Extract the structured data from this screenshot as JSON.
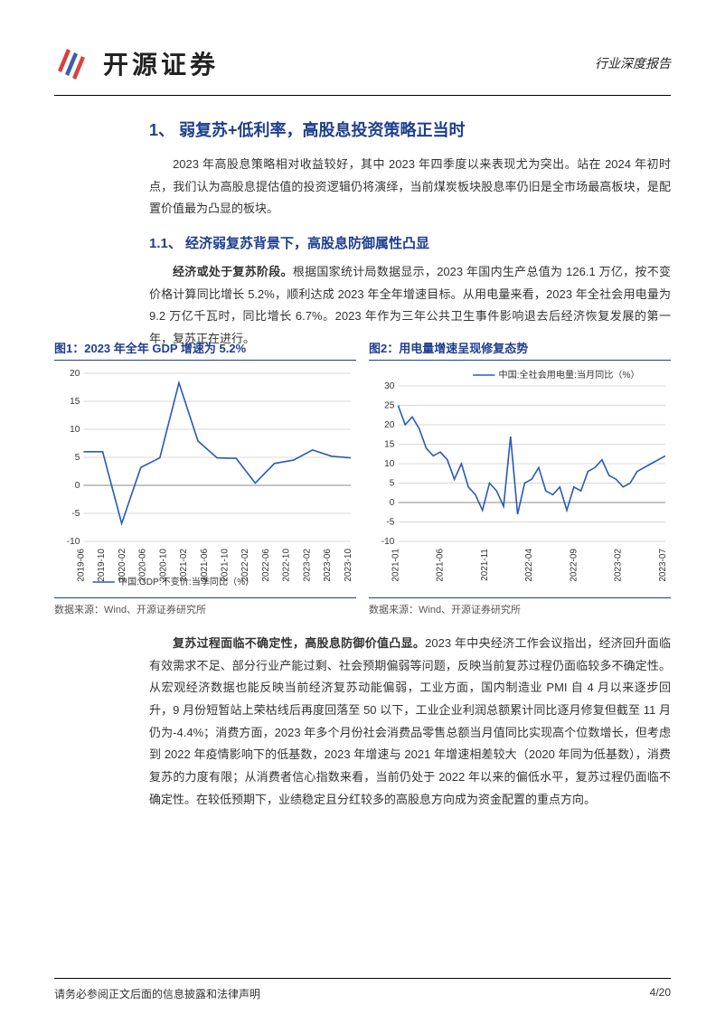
{
  "header": {
    "logo_text": "开源证券",
    "doc_type": "行业深度报告",
    "logo_colors": {
      "red": "#d9413b",
      "blue": "#3b5ea8"
    }
  },
  "section": {
    "h1": "1、 弱复苏+低利率，高股息投资策略正当时",
    "p1": "2023 年高股息策略相对收益较好，其中 2023 年四季度以来表现尤为突出。站在 2024 年初时点，我们认为高股息提估值的投资逻辑仍将演绎，当前煤炭板块股息率仍旧是全市场最高板块，是配置价值最为凸显的板块。",
    "h2": "1.1、 经济弱复苏背景下，高股息防御属性凸显",
    "p2_bold": "经济或处于复苏阶段。",
    "p2": "根据国家统计局数据显示，2023 年国内生产总值为 126.1 万亿，按不变价格计算同比增长 5.2%，顺利达成 2023 年全年增速目标。从用电量来看，2023 年全社会用电量为 9.2 万亿千瓦时，同比增长 6.7%。2023 年作为三年公共卫生事件影响退去后经济恢复发展的第一年，复苏正在进行。"
  },
  "fig1": {
    "title": "图1：2023 年全年 GDP 增速为 5.2%",
    "source": "数据来源：Wind、开源证券研究所",
    "type": "line",
    "legend": "中国:GDP:不变价:当季同比（%）",
    "x_labels": [
      "2019-06",
      "2019-10",
      "2020-02",
      "2020-06",
      "2020-10",
      "2021-02",
      "2021-06",
      "2021-10",
      "2022-02",
      "2022-06",
      "2022-10",
      "2023-02",
      "2023-06",
      "2023-10"
    ],
    "y_ticks": [
      -10,
      -5,
      0,
      5,
      10,
      15,
      20
    ],
    "ylim": [
      -10,
      20
    ],
    "values": [
      6.0,
      6.0,
      -6.8,
      3.2,
      4.9,
      18.3,
      7.9,
      4.9,
      4.8,
      0.4,
      3.9,
      4.5,
      6.3,
      5.2,
      4.9
    ],
    "line_color": "#2a5bb7",
    "line_width": 1.6,
    "grid_color": "#d8d8d8",
    "background_color": "#ffffff",
    "tick_fontsize": 10,
    "legend_fontsize": 10
  },
  "fig2": {
    "title": "图2：用电量增速呈现修复态势",
    "source": "数据来源：Wind、开源证券研究所",
    "type": "line",
    "legend": "中国:全社会用电量:当月同比（%）",
    "x_labels": [
      "2021-01",
      "2021-06",
      "2021-11",
      "2022-04",
      "2022-09",
      "2023-02",
      "2023-07"
    ],
    "y_ticks": [
      -10,
      -5,
      0,
      5,
      10,
      15,
      20,
      25,
      30
    ],
    "ylim": [
      -10,
      30
    ],
    "values": [
      25,
      20,
      22,
      19,
      14,
      12,
      13,
      11,
      6,
      10,
      4,
      2,
      -2,
      5,
      3,
      -1,
      17,
      -3,
      5,
      6,
      9,
      3,
      2,
      4,
      -2,
      4,
      3,
      8,
      9,
      11,
      7,
      6,
      4,
      5,
      8,
      9,
      10,
      11,
      12
    ],
    "line_color": "#2a5bb7",
    "line_width": 1.6,
    "grid_color": "#d8d8d8",
    "background_color": "#ffffff",
    "tick_fontsize": 10,
    "legend_fontsize": 10
  },
  "section2": {
    "p3_bold": "复苏过程面临不确定性，高股息防御价值凸显。",
    "p3": "2023 年中央经济工作会议指出，经济回升面临有效需求不足、部分行业产能过剩、社会预期偏弱等问题，反映当前复苏过程仍面临较多不确定性。从宏观经济数据也能反映当前经济复苏动能偏弱，工业方面，国内制造业 PMI 自 4 月以来逐步回升，9 月份短暂站上荣枯线后再度回落至 50 以下，工业企业利润总额累计同比逐月修复但截至 11 月仍为-4.4%；消费方面，2023 年多个月份社会消费品零售总额当月值同比实现高个位数增长，但考虑到 2022 年疫情影响下的低基数，2023 年增速与 2021 年增速相差较大（2020 年同为低基数），消费复苏的力度有限；从消费者信心指数来看，当前仍处于 2022 年以来的偏低水平，复苏过程仍面临不确定性。在较低预期下，业绩稳定且分红较多的高股息方向成为资金配置的重点方向。"
  },
  "footer": {
    "disclaimer": "请务必参阅正文后面的信息披露和法律声明",
    "page": "4/20"
  }
}
